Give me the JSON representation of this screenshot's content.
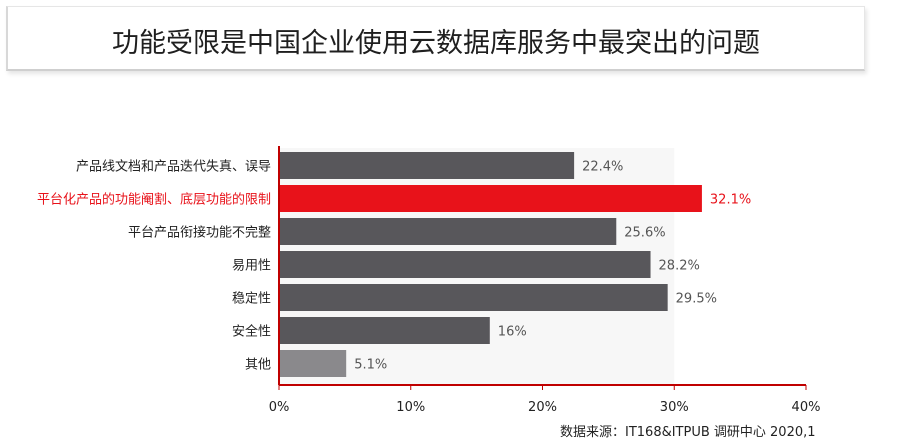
{
  "title": "功能受限是中国企业使用云数据库服务中最突出的问题",
  "footer": "数据来源：IT168&ITPUB 调研中心 2020,1",
  "colors": {
    "bar": "#58575b",
    "highlight": "#e8121a",
    "other": "#8a898c",
    "axis": "#c00000",
    "label": "#222222",
    "value": "#555555"
  },
  "chart_data": {
    "type": "bar",
    "orientation": "horizontal",
    "categories": [
      "产品线文档和产品迭代失真、误导",
      "平台化产品的功能阉割、底层功能的限制",
      "平台产品衔接功能不完整",
      "易用性",
      "稳定性",
      "安全性",
      "其他"
    ],
    "values": [
      22.4,
      32.1,
      25.6,
      28.2,
      29.5,
      16,
      5.1
    ],
    "value_labels": [
      "22.4%",
      "32.1%",
      "25.6%",
      "28.2%",
      "29.5%",
      "16%",
      "5.1%"
    ],
    "highlight_index": 1,
    "xlim": [
      0,
      40
    ],
    "xticks": [
      "0%",
      "10%",
      "20%",
      "30%",
      "40%"
    ],
    "grid": false,
    "legend": "none"
  }
}
